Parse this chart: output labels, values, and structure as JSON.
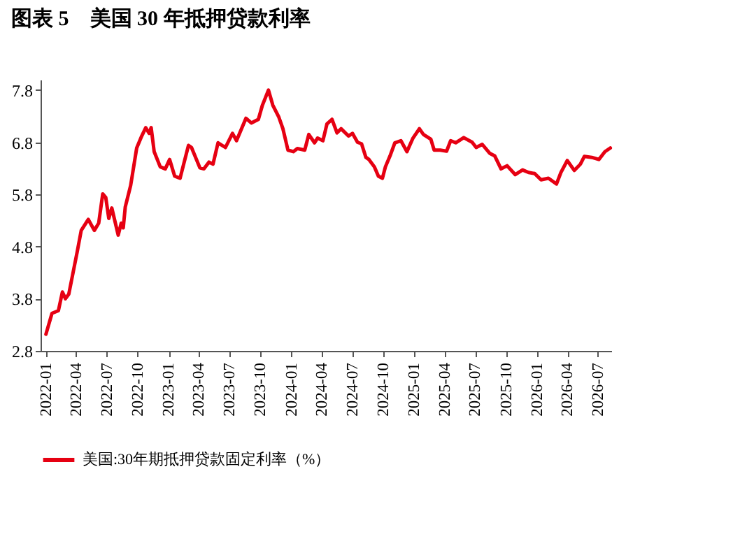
{
  "chart_data": {
    "type": "line",
    "title": "图表 5　美国 30 年抵押贷款利率",
    "legend": "bottom",
    "grid": false,
    "marker": "none",
    "line_style": "solid",
    "xlim": [
      "2021-12-16",
      "2026-08-10"
    ],
    "xticks": [
      "2022-01",
      "2022-04",
      "2022-07",
      "2022-10",
      "2023-01",
      "2023-04",
      "2023-07",
      "2023-10",
      "2024-01",
      "2024-04",
      "2024-07",
      "2024-10",
      "2025-01",
      "2025-04",
      "2025-07",
      "2025-10",
      "2026-01",
      "2026-04",
      "2026-07"
    ],
    "ylim": [
      2.8,
      8.0
    ],
    "yticks": [
      2.8,
      3.8,
      4.8,
      5.8,
      6.8,
      7.8
    ],
    "x": [
      "2022-01-01",
      "2022-01-19",
      "2022-02-07",
      "2022-02-19",
      "2022-02-28",
      "2022-03-10",
      "2022-04-04",
      "2022-04-16",
      "2022-05-07",
      "2022-05-25",
      "2022-06-07",
      "2022-06-19",
      "2022-06-28",
      "2022-07-07",
      "2022-07-16",
      "2022-08-04",
      "2022-08-13",
      "2022-08-19",
      "2022-08-25",
      "2022-09-10",
      "2022-09-28",
      "2022-10-13",
      "2022-10-25",
      "2022-11-04",
      "2022-11-10",
      "2022-11-19",
      "2022-12-07",
      "2022-12-22",
      "2023-01-04",
      "2023-01-19",
      "2023-02-04",
      "2023-03-01",
      "2023-03-10",
      "2023-04-04",
      "2023-04-16",
      "2023-05-01",
      "2023-05-13",
      "2023-05-28",
      "2023-06-19",
      "2023-07-10",
      "2023-07-22",
      "2023-08-19",
      "2023-09-04",
      "2023-09-25",
      "2023-10-07",
      "2023-10-25",
      "2023-11-07",
      "2023-11-25",
      "2023-12-07",
      "2023-12-22",
      "2024-01-07",
      "2024-01-19",
      "2024-02-10",
      "2024-02-22",
      "2024-03-10",
      "2024-03-19",
      "2024-04-04",
      "2024-04-16",
      "2024-05-01",
      "2024-05-16",
      "2024-05-28",
      "2024-06-19",
      "2024-07-01",
      "2024-07-16",
      "2024-07-28",
      "2024-08-10",
      "2024-08-19",
      "2024-09-04",
      "2024-09-16",
      "2024-09-28",
      "2024-10-07",
      "2024-10-22",
      "2024-11-04",
      "2024-11-22",
      "2024-12-10",
      "2024-12-28",
      "2025-01-16",
      "2025-01-28",
      "2025-02-19",
      "2025-03-01",
      "2025-03-19",
      "2025-04-07",
      "2025-04-19",
      "2025-05-04",
      "2025-05-28",
      "2025-06-22",
      "2025-07-04",
      "2025-07-22",
      "2025-08-13",
      "2025-08-28",
      "2025-09-16",
      "2025-10-04",
      "2025-10-28",
      "2025-11-19",
      "2025-12-07",
      "2025-12-25",
      "2026-01-13",
      "2026-02-04",
      "2026-02-28",
      "2026-03-13",
      "2026-04-01",
      "2026-04-22",
      "2026-05-10",
      "2026-05-22",
      "2026-06-13",
      "2026-07-04",
      "2026-07-22",
      "2026-08-07"
    ],
    "series": [
      {
        "name": "美国:30年期抵押贷款固定利率（%）",
        "color": "#e60012",
        "values": [
          3.12,
          3.52,
          3.57,
          3.93,
          3.8,
          3.89,
          4.7,
          5.11,
          5.32,
          5.11,
          5.25,
          5.81,
          5.74,
          5.34,
          5.54,
          5.02,
          5.25,
          5.16,
          5.56,
          5.97,
          6.69,
          6.92,
          7.08,
          6.97,
          7.08,
          6.62,
          6.33,
          6.29,
          6.47,
          6.15,
          6.11,
          6.74,
          6.7,
          6.31,
          6.29,
          6.42,
          6.38,
          6.79,
          6.7,
          6.97,
          6.83,
          7.26,
          7.17,
          7.24,
          7.51,
          7.8,
          7.51,
          7.28,
          7.06,
          6.65,
          6.62,
          6.68,
          6.65,
          6.95,
          6.79,
          6.88,
          6.83,
          7.15,
          7.24,
          6.98,
          7.06,
          6.92,
          6.97,
          6.8,
          6.77,
          6.51,
          6.47,
          6.33,
          6.15,
          6.11,
          6.33,
          6.56,
          6.79,
          6.83,
          6.62,
          6.88,
          7.06,
          6.95,
          6.86,
          6.65,
          6.65,
          6.63,
          6.83,
          6.79,
          6.89,
          6.8,
          6.7,
          6.76,
          6.59,
          6.54,
          6.29,
          6.35,
          6.18,
          6.27,
          6.22,
          6.2,
          6.08,
          6.11,
          6.0,
          6.22,
          6.45,
          6.26,
          6.38,
          6.53,
          6.51,
          6.47,
          6.62,
          6.69
        ]
      }
    ]
  }
}
